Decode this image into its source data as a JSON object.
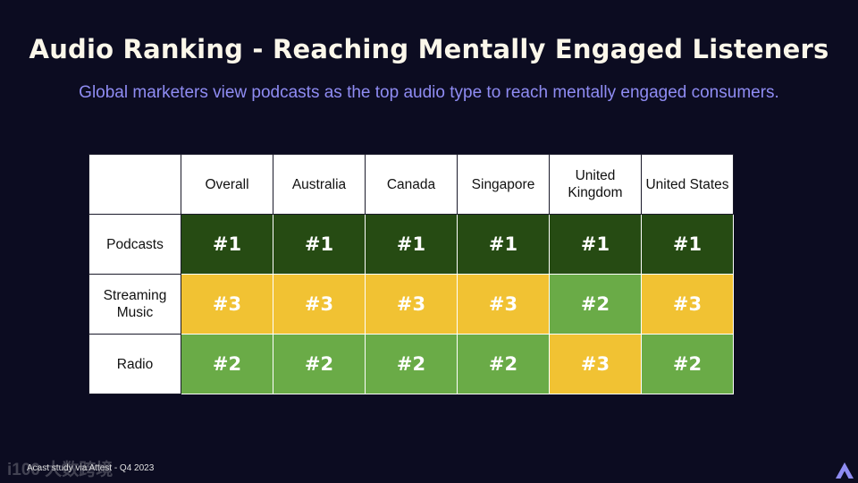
{
  "title": "Audio Ranking - Reaching Mentally Engaged Listeners",
  "subtitle": "Global marketers view podcasts as the top audio type to reach mentally engaged consumers.",
  "footer": "Acast study via Attest - Q4 2023",
  "watermark": "i100 大数跨境",
  "colors": {
    "background": "#0c0c21",
    "title": "#fbf7ea",
    "subtitle": "#8f8cf3",
    "rank_1": "#264b13",
    "rank_2": "#6aab47",
    "rank_3": "#f1c233"
  },
  "chart_data": {
    "type": "table",
    "columns": [
      "Overall",
      "Australia",
      "Canada",
      "Singapore",
      "United Kingdom",
      "United States"
    ],
    "rows": [
      {
        "label": "Podcasts",
        "values": [
          "#1",
          "#1",
          "#1",
          "#1",
          "#1",
          "#1"
        ]
      },
      {
        "label": "Streaming Music",
        "values": [
          "#3",
          "#3",
          "#3",
          "#3",
          "#2",
          "#3"
        ]
      },
      {
        "label": "Radio",
        "values": [
          "#2",
          "#2",
          "#2",
          "#2",
          "#3",
          "#2"
        ]
      }
    ]
  }
}
